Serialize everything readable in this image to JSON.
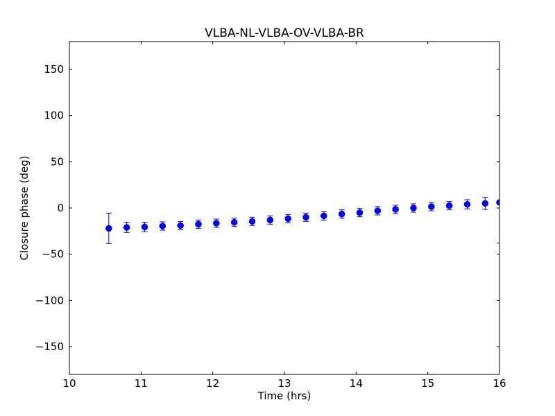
{
  "chart_data": {
    "type": "scatter",
    "title": "VLBA-NL-VLBA-OV-VLBA-BR",
    "xlabel": "Time (hrs)",
    "ylabel": "Closure phase (deg)",
    "xlim": [
      10,
      16
    ],
    "ylim": [
      -180,
      180
    ],
    "xticks": [
      10,
      11,
      12,
      13,
      14,
      15,
      16
    ],
    "xtick_labels": [
      "10",
      "11",
      "12",
      "13",
      "14",
      "15",
      "16"
    ],
    "yticks": [
      150,
      100,
      50,
      0,
      -50,
      -100,
      -150
    ],
    "ytick_labels": [
      "150",
      "100",
      "50",
      "0",
      "−50",
      "−100",
      "−150"
    ],
    "grid": false,
    "marker_color": "#0000ff",
    "error_bars": true,
    "points": [
      {
        "x": 10.55,
        "y": -22.0,
        "err": 16.5
      },
      {
        "x": 10.8,
        "y": -21.0,
        "err": 5.5
      },
      {
        "x": 11.05,
        "y": -20.5,
        "err": 5.0
      },
      {
        "x": 11.3,
        "y": -19.5,
        "err": 4.5
      },
      {
        "x": 11.55,
        "y": -19.0,
        "err": 4.5
      },
      {
        "x": 11.8,
        "y": -17.5,
        "err": 4.5
      },
      {
        "x": 12.05,
        "y": -16.5,
        "err": 4.5
      },
      {
        "x": 12.3,
        "y": -15.5,
        "err": 4.5
      },
      {
        "x": 12.55,
        "y": -14.5,
        "err": 4.5
      },
      {
        "x": 12.8,
        "y": -13.0,
        "err": 4.5
      },
      {
        "x": 13.05,
        "y": -11.5,
        "err": 4.5
      },
      {
        "x": 13.3,
        "y": -10.0,
        "err": 4.5
      },
      {
        "x": 13.55,
        "y": -8.5,
        "err": 4.5
      },
      {
        "x": 13.8,
        "y": -6.5,
        "err": 4.5
      },
      {
        "x": 14.05,
        "y": -5.0,
        "err": 4.5
      },
      {
        "x": 14.3,
        "y": -3.0,
        "err": 4.5
      },
      {
        "x": 14.55,
        "y": -1.5,
        "err": 4.5
      },
      {
        "x": 14.8,
        "y": 0.0,
        "err": 4.5
      },
      {
        "x": 15.05,
        "y": 1.5,
        "err": 4.5
      },
      {
        "x": 15.3,
        "y": 2.5,
        "err": 4.5
      },
      {
        "x": 15.55,
        "y": 4.0,
        "err": 5.0
      },
      {
        "x": 15.8,
        "y": 5.0,
        "err": 6.5
      },
      {
        "x": 16.0,
        "y": 6.0,
        "err": 44.0
      }
    ]
  }
}
